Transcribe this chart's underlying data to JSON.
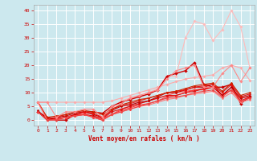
{
  "xlabel": "Vent moyen/en rafales ( km/h )",
  "bg_color": "#cce8ee",
  "grid_color": "#ffffff",
  "xlim": [
    -0.5,
    23.5
  ],
  "ylim": [
    -2,
    42
  ],
  "yticks": [
    0,
    5,
    10,
    15,
    20,
    25,
    30,
    35,
    40
  ],
  "xticks": [
    0,
    1,
    2,
    3,
    4,
    5,
    6,
    7,
    8,
    9,
    10,
    11,
    12,
    13,
    14,
    15,
    16,
    17,
    18,
    19,
    20,
    21,
    22,
    23
  ],
  "series": [
    {
      "x": [
        0,
        1,
        2,
        3,
        4,
        5,
        6,
        7,
        8,
        9,
        10,
        11,
        12,
        13,
        14,
        15,
        16,
        17,
        18,
        19,
        20,
        21,
        22,
        23
      ],
      "y": [
        6.5,
        6.5,
        6.5,
        6.5,
        6.5,
        6.5,
        6.5,
        6.5,
        7,
        8,
        9,
        10,
        11,
        12,
        13,
        14,
        15,
        15.5,
        16,
        16.5,
        19,
        20,
        19,
        14.5
      ],
      "color": "#ffaaaa",
      "lw": 0.8,
      "marker": "D",
      "ms": 1.8
    },
    {
      "x": [
        0,
        1,
        2,
        3,
        4,
        5,
        6,
        7,
        8,
        9,
        10,
        11,
        12,
        13,
        14,
        15,
        16,
        17,
        18,
        19,
        20,
        21,
        22,
        23
      ],
      "y": [
        6.5,
        0,
        0,
        1,
        2,
        2.5,
        2.5,
        0.5,
        4,
        7,
        8,
        9,
        10,
        11.5,
        16,
        16,
        30,
        36,
        35,
        29,
        33,
        40,
        34,
        19
      ],
      "color": "#ffbbbb",
      "lw": 0.8,
      "marker": "D",
      "ms": 1.8
    },
    {
      "x": [
        0,
        1,
        2,
        3,
        4,
        5,
        6,
        7,
        8,
        9,
        10,
        11,
        12,
        13,
        14,
        15,
        16,
        17,
        18,
        19,
        20,
        21,
        22,
        23
      ],
      "y": [
        3,
        1,
        0,
        0,
        2,
        3,
        3,
        2.5,
        5,
        6.5,
        7.5,
        8.5,
        9.5,
        11,
        16,
        17,
        18,
        21,
        13,
        12,
        12,
        13,
        6,
        8.5
      ],
      "color": "#cc0000",
      "lw": 1.0,
      "marker": "D",
      "ms": 2.0
    },
    {
      "x": [
        0,
        1,
        2,
        3,
        4,
        5,
        6,
        7,
        8,
        9,
        10,
        11,
        12,
        13,
        14,
        15,
        16,
        17,
        18,
        19,
        20,
        21,
        22,
        23
      ],
      "y": [
        3,
        0,
        0.5,
        1,
        2,
        2.5,
        1,
        0,
        2,
        4,
        5,
        6,
        7,
        8,
        9,
        10,
        10.5,
        11,
        11.5,
        12,
        9,
        11,
        8,
        8.5
      ],
      "color": "#ff5555",
      "lw": 0.8,
      "marker": "D",
      "ms": 1.8
    },
    {
      "x": [
        0,
        1,
        2,
        3,
        4,
        5,
        6,
        7,
        8,
        9,
        10,
        11,
        12,
        13,
        14,
        15,
        16,
        17,
        18,
        19,
        20,
        21,
        22,
        23
      ],
      "y": [
        3,
        0,
        0.5,
        1,
        1.5,
        2,
        1.5,
        0.5,
        2,
        3.5,
        4.5,
        5.5,
        6,
        7,
        8.5,
        9,
        10,
        11,
        11,
        12,
        9,
        11,
        7,
        8
      ],
      "color": "#ff3333",
      "lw": 0.8,
      "marker": "D",
      "ms": 1.5
    },
    {
      "x": [
        0,
        1,
        2,
        3,
        4,
        5,
        6,
        7,
        8,
        9,
        10,
        11,
        12,
        13,
        14,
        15,
        16,
        17,
        18,
        19,
        20,
        21,
        22,
        23
      ],
      "y": [
        3,
        0,
        0.5,
        1,
        2,
        2,
        1.5,
        0.5,
        3,
        4,
        5,
        6,
        7,
        8,
        9,
        9,
        10,
        10.5,
        11.5,
        12,
        9,
        12,
        7,
        8.5
      ],
      "color": "#dd1111",
      "lw": 0.8,
      "marker": "D",
      "ms": 1.5
    },
    {
      "x": [
        0,
        1,
        2,
        3,
        4,
        5,
        6,
        7,
        8,
        9,
        10,
        11,
        12,
        13,
        14,
        15,
        16,
        17,
        18,
        19,
        20,
        21,
        22,
        23
      ],
      "y": [
        3.5,
        0,
        1,
        1.5,
        2.5,
        3,
        2,
        1,
        3.5,
        5,
        5.5,
        6.5,
        7,
        8.5,
        10,
        10,
        11,
        12,
        12,
        13,
        9,
        12,
        8,
        9
      ],
      "color": "#bb0000",
      "lw": 0.8,
      "marker": "D",
      "ms": 1.5
    },
    {
      "x": [
        0,
        1,
        2,
        3,
        4,
        5,
        6,
        7,
        8,
        9,
        10,
        11,
        12,
        13,
        14,
        15,
        16,
        17,
        18,
        19,
        20,
        21,
        22,
        23
      ],
      "y": [
        6.5,
        0.5,
        1,
        2,
        3,
        3,
        2.5,
        1,
        3.5,
        5.5,
        6,
        7,
        8,
        9,
        10,
        10.5,
        11,
        12,
        12.5,
        13,
        10,
        13,
        8.5,
        9.5
      ],
      "color": "#ee1111",
      "lw": 0.8,
      "marker": "D",
      "ms": 1.5
    },
    {
      "x": [
        0,
        1,
        2,
        3,
        4,
        5,
        6,
        7,
        8,
        9,
        10,
        11,
        12,
        13,
        14,
        15,
        16,
        17,
        18,
        19,
        20,
        21,
        22,
        23
      ],
      "y": [
        6.5,
        1,
        1.5,
        2,
        3,
        3.5,
        3,
        2,
        4,
        5.5,
        6.5,
        7.5,
        8,
        9,
        10,
        10.5,
        11.5,
        12.5,
        13,
        13.5,
        10.5,
        13.5,
        9,
        10
      ],
      "color": "#cc2200",
      "lw": 0.8,
      "marker": "D",
      "ms": 1.5
    },
    {
      "x": [
        0,
        1,
        2,
        3,
        4,
        5,
        6,
        7,
        8,
        9,
        10,
        11,
        12,
        13,
        14,
        15,
        16,
        17,
        18,
        19,
        20,
        21,
        22,
        23
      ],
      "y": [
        6.5,
        0,
        0,
        1,
        1.5,
        2,
        1,
        0,
        2,
        3,
        4,
        5,
        5.5,
        6.5,
        7.5,
        8,
        9,
        9.5,
        10,
        10.5,
        8,
        10,
        6.5,
        7.5
      ],
      "color": "#ff7777",
      "lw": 0.8,
      "marker": "D",
      "ms": 1.5
    },
    {
      "x": [
        0,
        1,
        2,
        3,
        4,
        5,
        6,
        7,
        8,
        9,
        10,
        11,
        12,
        13,
        14,
        15,
        16,
        17,
        18,
        19,
        20,
        21,
        22,
        23
      ],
      "y": [
        3,
        0,
        0,
        1,
        1.5,
        2,
        1,
        0,
        2,
        3,
        4,
        5,
        6,
        7,
        8,
        8.5,
        9,
        10,
        10.5,
        11,
        8.5,
        11,
        7,
        8
      ],
      "color": "#ee4444",
      "lw": 0.8,
      "marker": "D",
      "ms": 1.5
    },
    {
      "x": [
        0,
        1,
        2,
        3,
        4,
        5,
        6,
        7,
        8,
        9,
        10,
        11,
        12,
        13,
        14,
        15,
        16,
        17,
        18,
        19,
        20,
        21,
        22,
        23
      ],
      "y": [
        6.5,
        6.5,
        1,
        3,
        3,
        4,
        4,
        1,
        5,
        6,
        8,
        9,
        10,
        11,
        15,
        18,
        19,
        20,
        12,
        12,
        17,
        20,
        14,
        19
      ],
      "color": "#ff8888",
      "lw": 0.8,
      "marker": "D",
      "ms": 1.8
    }
  ]
}
